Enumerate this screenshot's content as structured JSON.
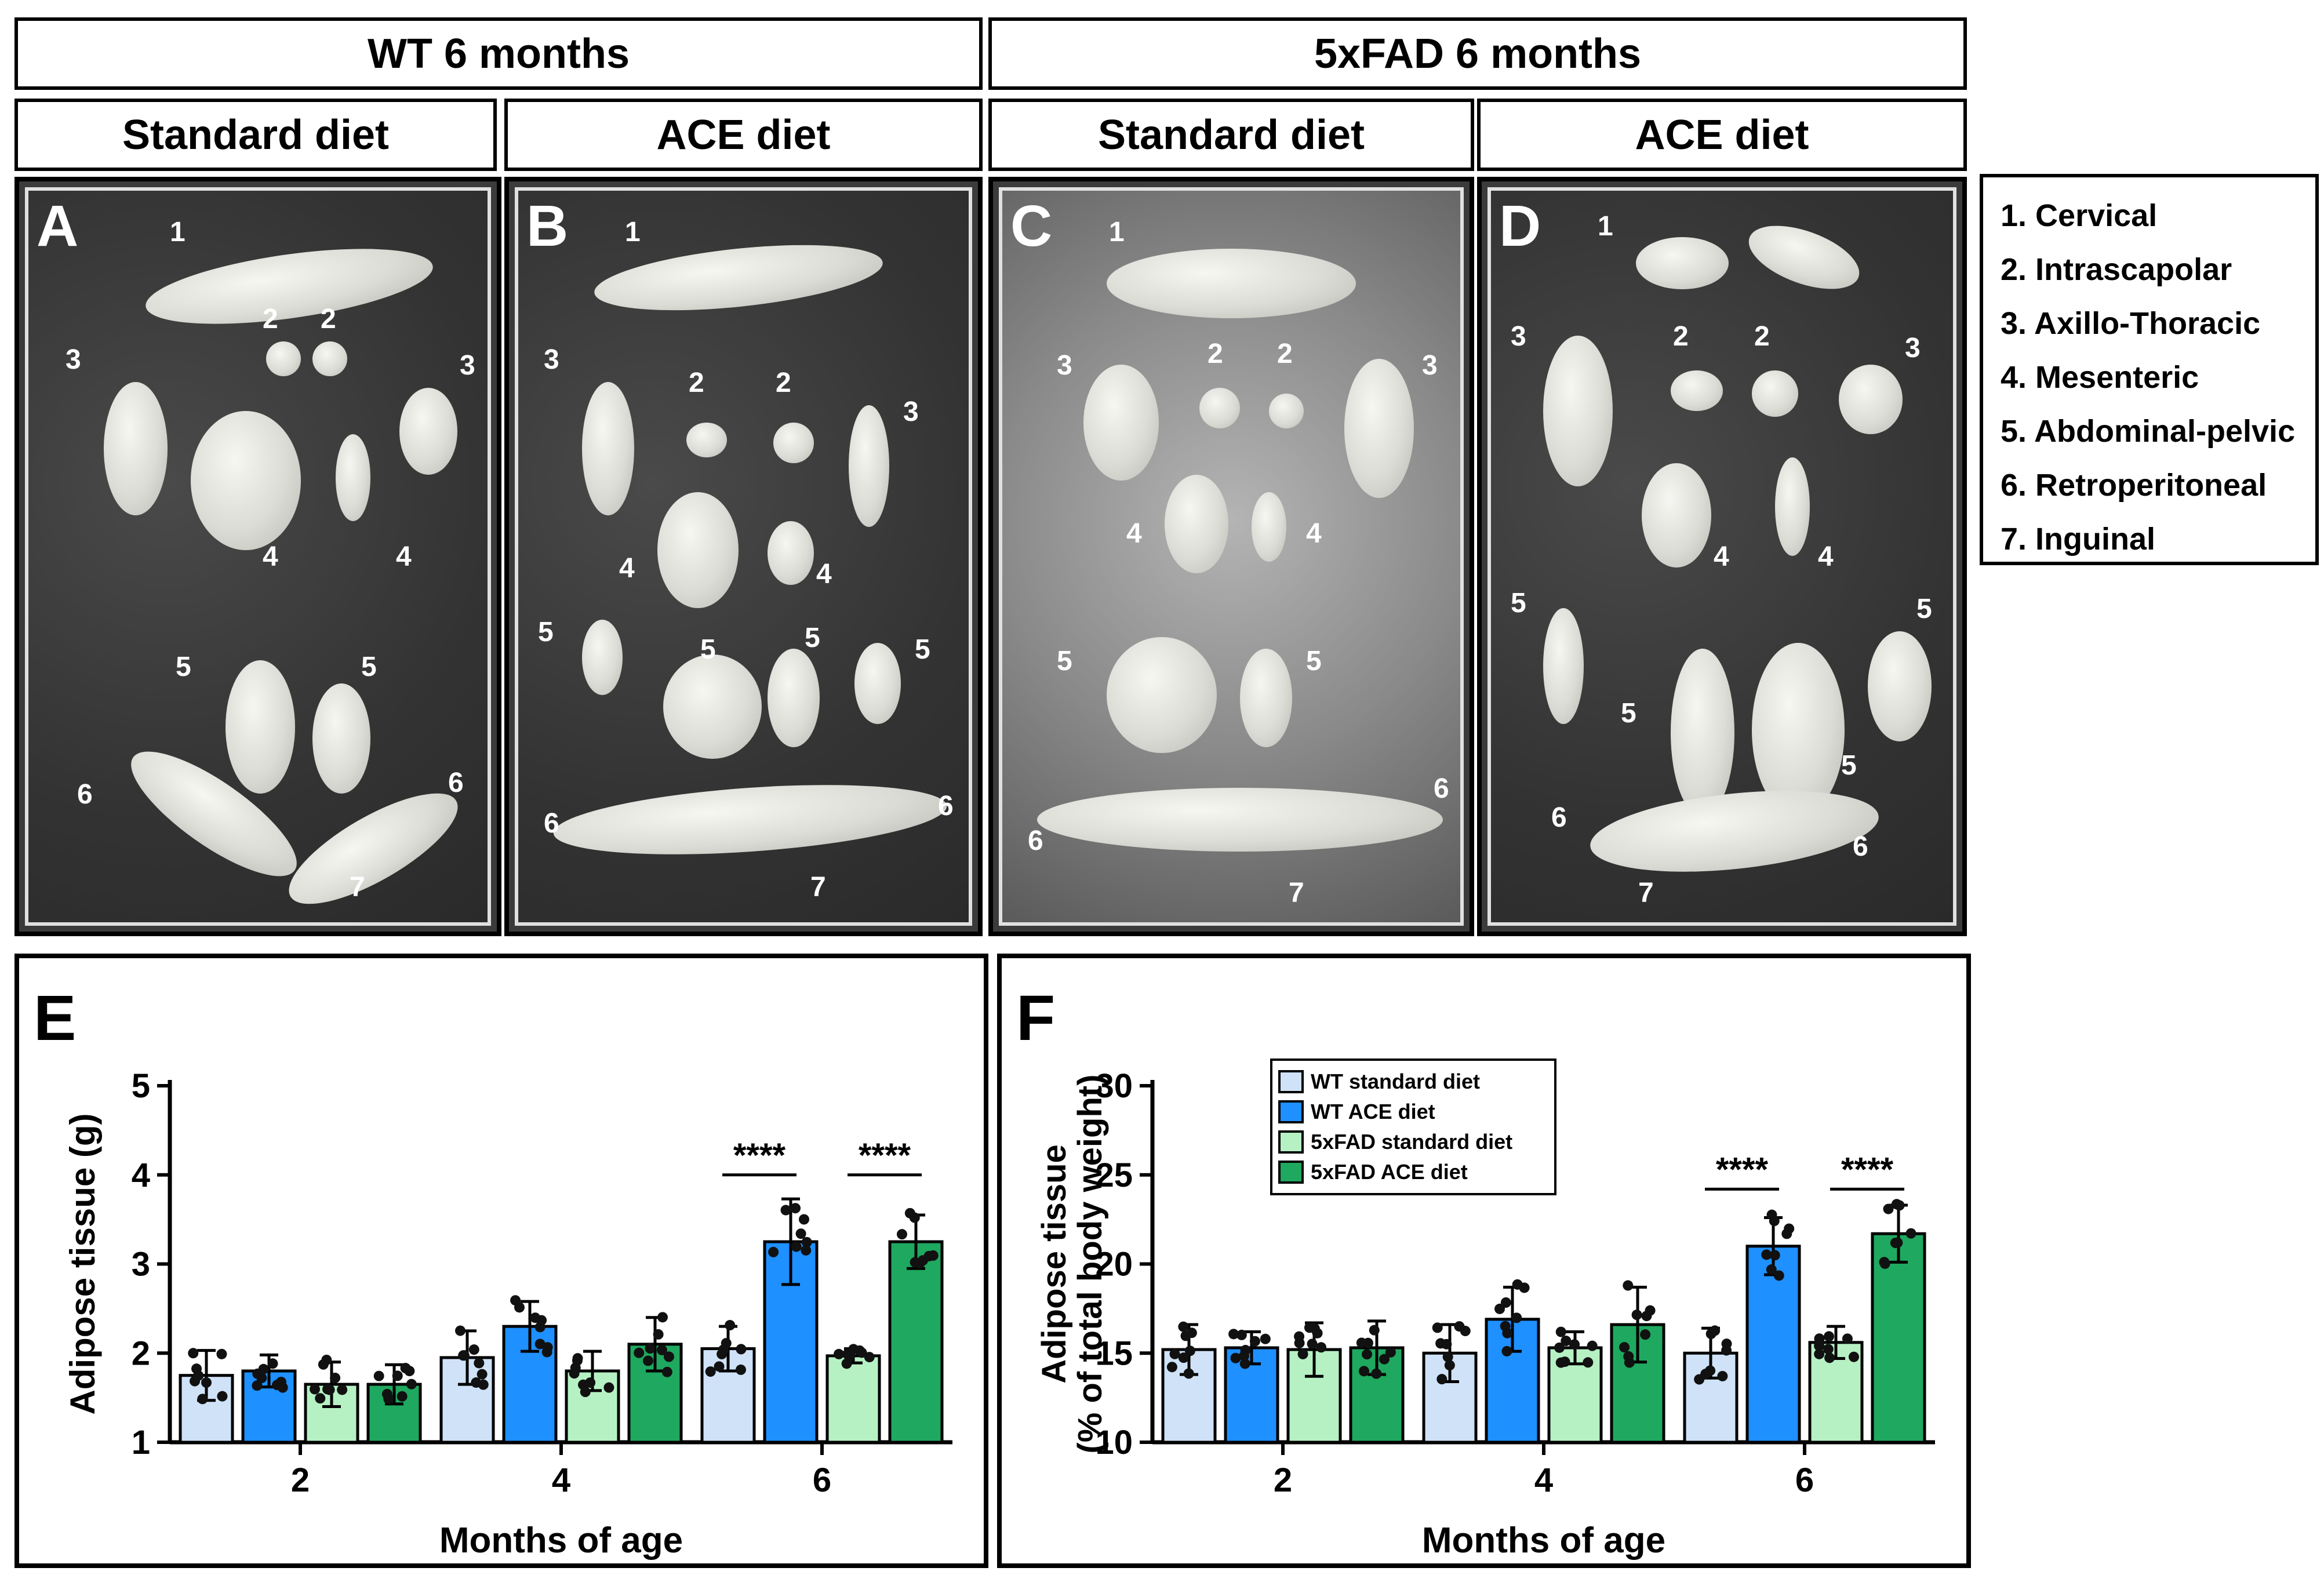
{
  "headers": {
    "wt": "WT 6 months",
    "fad": "5xFAD 6 months",
    "wt_std": "Standard diet",
    "wt_ace": "ACE diet",
    "fad_std": "Standard diet",
    "fad_ace": "ACE diet"
  },
  "photos": [
    {
      "label": "A",
      "numbers": [
        "1",
        "2",
        "2",
        "3",
        "3",
        "4",
        "4",
        "5",
        "5",
        "6",
        "6",
        "7"
      ]
    },
    {
      "label": "B",
      "numbers": [
        "1",
        "2",
        "2",
        "3",
        "3",
        "4",
        "4",
        "5",
        "5",
        "5",
        "5",
        "6",
        "6",
        "7"
      ]
    },
    {
      "label": "C",
      "numbers": [
        "1",
        "2",
        "2",
        "3",
        "3",
        "4",
        "4",
        "5",
        "5",
        "6",
        "6",
        "7"
      ]
    },
    {
      "label": "D",
      "numbers": [
        "1",
        "2",
        "2",
        "3",
        "3",
        "4",
        "4",
        "5",
        "5",
        "5",
        "5",
        "6",
        "6",
        "7"
      ]
    }
  ],
  "legend_list": [
    "1. Cervical",
    "2. Intrascapolar",
    "3. Axillo-Thoracic",
    "4. Mesenteric",
    "5. Abdominal-pelvic",
    "6. Retroperitoneal",
    "7. Inguinal"
  ],
  "colors": {
    "wt_std": "#cfe2f7",
    "wt_ace": "#1e90ff",
    "fad_std": "#b6f1c4",
    "fad_ace": "#1fa85f"
  },
  "chart_data": [
    {
      "panel": "E",
      "type": "bar",
      "xlabel": "Months of age",
      "ylabel": "Adipose tissue (g)",
      "categories": [
        "2",
        "4",
        "6"
      ],
      "ylim": [
        1,
        5
      ],
      "yticks": [
        "1",
        "2",
        "3",
        "4",
        "5"
      ],
      "series": [
        {
          "name": "WT standard diet",
          "values": [
            1.75,
            1.95,
            2.05
          ],
          "err": [
            0.28,
            0.3,
            0.25
          ],
          "color": "#cfe2f7"
        },
        {
          "name": "WT ACE diet",
          "values": [
            1.8,
            2.3,
            3.25
          ],
          "err": [
            0.18,
            0.28,
            0.48
          ],
          "color": "#1e90ff"
        },
        {
          "name": "5xFAD standard diet",
          "values": [
            1.65,
            1.8,
            1.97
          ],
          "err": [
            0.25,
            0.22,
            0.08
          ],
          "color": "#b6f1c4"
        },
        {
          "name": "5xFAD ACE diet",
          "values": [
            1.65,
            2.1,
            3.25
          ],
          "err": [
            0.22,
            0.3,
            0.3
          ],
          "color": "#1fa85f"
        }
      ],
      "annotations": [
        {
          "text": "****",
          "group": 2,
          "from": 0,
          "to": 1,
          "y": 4.0
        },
        {
          "text": "****",
          "group": 2,
          "from": 2,
          "to": 3,
          "y": 4.0
        }
      ]
    },
    {
      "panel": "F",
      "type": "bar",
      "xlabel": "Months of age",
      "ylabel": "Adipose tissue",
      "ylabel2": "(% of total body weight)",
      "categories": [
        "2",
        "4",
        "6"
      ],
      "ylim": [
        10,
        30
      ],
      "yticks": [
        "10",
        "15",
        "20",
        "25",
        "30"
      ],
      "legend_position": "top-left",
      "series": [
        {
          "name": "WT standard diet",
          "values": [
            15.2,
            15.0,
            15.0
          ],
          "err": [
            1.4,
            1.6,
            1.4
          ],
          "color": "#cfe2f7"
        },
        {
          "name": "WT ACE diet",
          "values": [
            15.3,
            16.9,
            21.0
          ],
          "err": [
            0.9,
            1.8,
            1.6
          ],
          "color": "#1e90ff"
        },
        {
          "name": "5xFAD standard diet",
          "values": [
            15.2,
            15.3,
            15.6
          ],
          "err": [
            1.5,
            0.9,
            0.9
          ],
          "color": "#b6f1c4"
        },
        {
          "name": "5xFAD ACE diet",
          "values": [
            15.3,
            16.6,
            21.7
          ],
          "err": [
            1.5,
            2.1,
            1.6
          ],
          "color": "#1fa85f"
        }
      ],
      "annotations": [
        {
          "text": "****",
          "group": 2,
          "from": 0,
          "to": 1,
          "y": 24.2
        },
        {
          "text": "****",
          "group": 2,
          "from": 2,
          "to": 3,
          "y": 24.2
        }
      ]
    }
  ]
}
